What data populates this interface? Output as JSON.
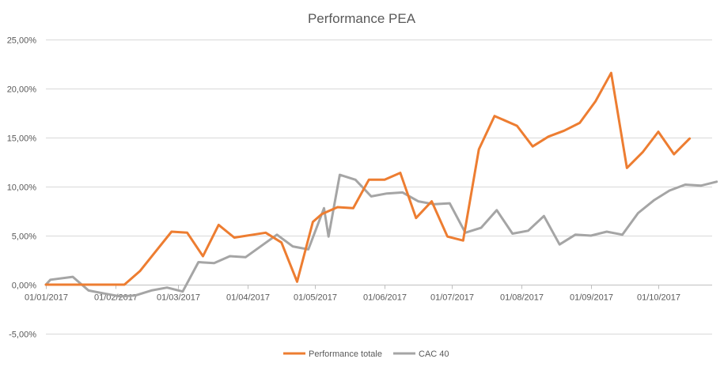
{
  "chart_data": {
    "type": "line",
    "title": "Performance PEA",
    "xlabel": "",
    "ylabel": "",
    "ylim": [
      -0.05,
      0.25
    ],
    "xlim": [
      "2017-01-01",
      "2017-10-25"
    ],
    "grid": "horizontal",
    "legend_position": "bottom",
    "y_ticks": [
      {
        "value": -0.05,
        "label": "-5,00%"
      },
      {
        "value": 0.0,
        "label": "0,00%"
      },
      {
        "value": 0.05,
        "label": "5,00%"
      },
      {
        "value": 0.1,
        "label": "10,00%"
      },
      {
        "value": 0.15,
        "label": "15,00%"
      },
      {
        "value": 0.2,
        "label": "20,00%"
      },
      {
        "value": 0.25,
        "label": "25,00%"
      }
    ],
    "x_ticks": [
      {
        "date": "2017-01-01",
        "label": "01/01/2017"
      },
      {
        "date": "2017-02-01",
        "label": "01/02/2017"
      },
      {
        "date": "2017-03-01",
        "label": "01/03/2017"
      },
      {
        "date": "2017-04-01",
        "label": "01/04/2017"
      },
      {
        "date": "2017-05-01",
        "label": "01/05/2017"
      },
      {
        "date": "2017-06-01",
        "label": "01/06/2017"
      },
      {
        "date": "2017-07-01",
        "label": "01/07/2017"
      },
      {
        "date": "2017-08-01",
        "label": "01/08/2017"
      },
      {
        "date": "2017-09-01",
        "label": "01/09/2017"
      },
      {
        "date": "2017-10-01",
        "label": "01/10/2017"
      }
    ],
    "series": [
      {
        "name": "Performance totale",
        "color": "#ED7D31",
        "points": [
          [
            "2017-01-01",
            0.0
          ],
          [
            "2017-01-08",
            0.0
          ],
          [
            "2017-01-15",
            0.0
          ],
          [
            "2017-01-22",
            0.0
          ],
          [
            "2017-01-29",
            0.0
          ],
          [
            "2017-02-05",
            0.0
          ],
          [
            "2017-02-12",
            0.014
          ],
          [
            "2017-02-19",
            0.034
          ],
          [
            "2017-02-26",
            0.054
          ],
          [
            "2017-03-05",
            0.053
          ],
          [
            "2017-03-12",
            0.029
          ],
          [
            "2017-03-19",
            0.061
          ],
          [
            "2017-03-26",
            0.048
          ],
          [
            "2017-04-09",
            0.053
          ],
          [
            "2017-04-16",
            0.043
          ],
          [
            "2017-04-23",
            0.003
          ],
          [
            "2017-04-30",
            0.064
          ],
          [
            "2017-05-04",
            0.072
          ],
          [
            "2017-05-11",
            0.079
          ],
          [
            "2017-05-18",
            0.078
          ],
          [
            "2017-05-25",
            0.107
          ],
          [
            "2017-06-01",
            0.107
          ],
          [
            "2017-06-08",
            0.114
          ],
          [
            "2017-06-15",
            0.068
          ],
          [
            "2017-06-22",
            0.085
          ],
          [
            "2017-06-29",
            0.049
          ],
          [
            "2017-07-06",
            0.045
          ],
          [
            "2017-07-13",
            0.138
          ],
          [
            "2017-07-20",
            0.172
          ],
          [
            "2017-07-30",
            0.162
          ],
          [
            "2017-08-06",
            0.141
          ],
          [
            "2017-08-13",
            0.151
          ],
          [
            "2017-08-20",
            0.157
          ],
          [
            "2017-08-27",
            0.165
          ],
          [
            "2017-09-03",
            0.187
          ],
          [
            "2017-09-10",
            0.216
          ],
          [
            "2017-09-17",
            0.119
          ],
          [
            "2017-09-24",
            0.135
          ],
          [
            "2017-10-01",
            0.156
          ],
          [
            "2017-10-08",
            0.133
          ],
          [
            "2017-10-15",
            0.149
          ]
        ]
      },
      {
        "name": "CAC 40",
        "color": "#A5A5A5",
        "points": [
          [
            "2017-01-01",
            0.0
          ],
          [
            "2017-01-03",
            0.005
          ],
          [
            "2017-01-13",
            0.008
          ],
          [
            "2017-01-20",
            -0.006
          ],
          [
            "2017-01-27",
            -0.009
          ],
          [
            "2017-02-03",
            -0.012
          ],
          [
            "2017-02-10",
            -0.011
          ],
          [
            "2017-02-17",
            -0.006
          ],
          [
            "2017-02-24",
            -0.003
          ],
          [
            "2017-03-03",
            -0.007
          ],
          [
            "2017-03-10",
            0.023
          ],
          [
            "2017-03-17",
            0.022
          ],
          [
            "2017-03-24",
            0.029
          ],
          [
            "2017-03-31",
            0.028
          ],
          [
            "2017-04-14",
            0.051
          ],
          [
            "2017-04-21",
            0.039
          ],
          [
            "2017-04-28",
            0.036
          ],
          [
            "2017-05-05",
            0.078
          ],
          [
            "2017-05-07",
            0.049
          ],
          [
            "2017-05-12",
            0.112
          ],
          [
            "2017-05-19",
            0.107
          ],
          [
            "2017-05-26",
            0.09
          ],
          [
            "2017-06-02",
            0.093
          ],
          [
            "2017-06-09",
            0.094
          ],
          [
            "2017-06-16",
            0.085
          ],
          [
            "2017-06-23",
            0.082
          ],
          [
            "2017-06-30",
            0.083
          ],
          [
            "2017-07-07",
            0.053
          ],
          [
            "2017-07-14",
            0.058
          ],
          [
            "2017-07-21",
            0.076
          ],
          [
            "2017-07-28",
            0.052
          ],
          [
            "2017-08-04",
            0.055
          ],
          [
            "2017-08-11",
            0.07
          ],
          [
            "2017-08-18",
            0.041
          ],
          [
            "2017-08-25",
            0.051
          ],
          [
            "2017-09-01",
            0.05
          ],
          [
            "2017-09-08",
            0.054
          ],
          [
            "2017-09-15",
            0.051
          ],
          [
            "2017-09-22",
            0.073
          ],
          [
            "2017-09-29",
            0.086
          ],
          [
            "2017-10-06",
            0.096
          ],
          [
            "2017-10-13",
            0.102
          ],
          [
            "2017-10-20",
            0.101
          ],
          [
            "2017-10-27",
            0.105
          ]
        ]
      }
    ]
  }
}
